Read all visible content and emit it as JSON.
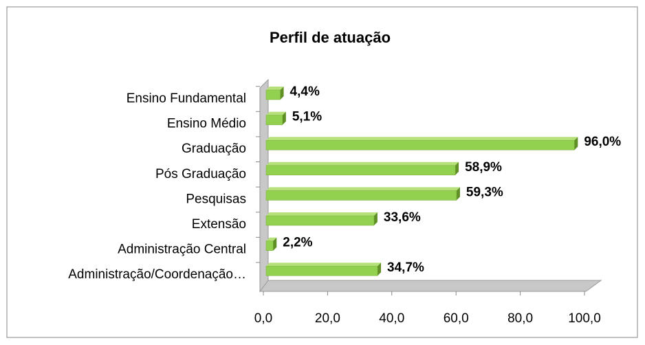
{
  "chart_data": {
    "type": "bar",
    "orientation": "horizontal",
    "title": "Perfil de atuação",
    "categories": [
      "Ensino Fundamental",
      "Ensino Médio",
      "Graduação",
      "Pós Graduação",
      "Pesquisas",
      "Extensão",
      "Administração Central",
      "Administração/Coordenação…"
    ],
    "values": [
      4.4,
      5.1,
      96.0,
      58.9,
      59.3,
      33.6,
      2.2,
      34.7
    ],
    "value_labels": [
      "4,4%",
      "5,1%",
      "96,0%",
      "58,9%",
      "59,3%",
      "33,6%",
      "2,2%",
      "34,7%"
    ],
    "color": "#92d050",
    "xlim": [
      0,
      100
    ],
    "xticks": [
      {
        "value": 0,
        "label": "0,0"
      },
      {
        "value": 20,
        "label": "20,0"
      },
      {
        "value": 40,
        "label": "40,0"
      },
      {
        "value": 60,
        "label": "60,0"
      },
      {
        "value": 80,
        "label": "80,0"
      },
      {
        "value": 100,
        "label": "100,0"
      }
    ]
  }
}
